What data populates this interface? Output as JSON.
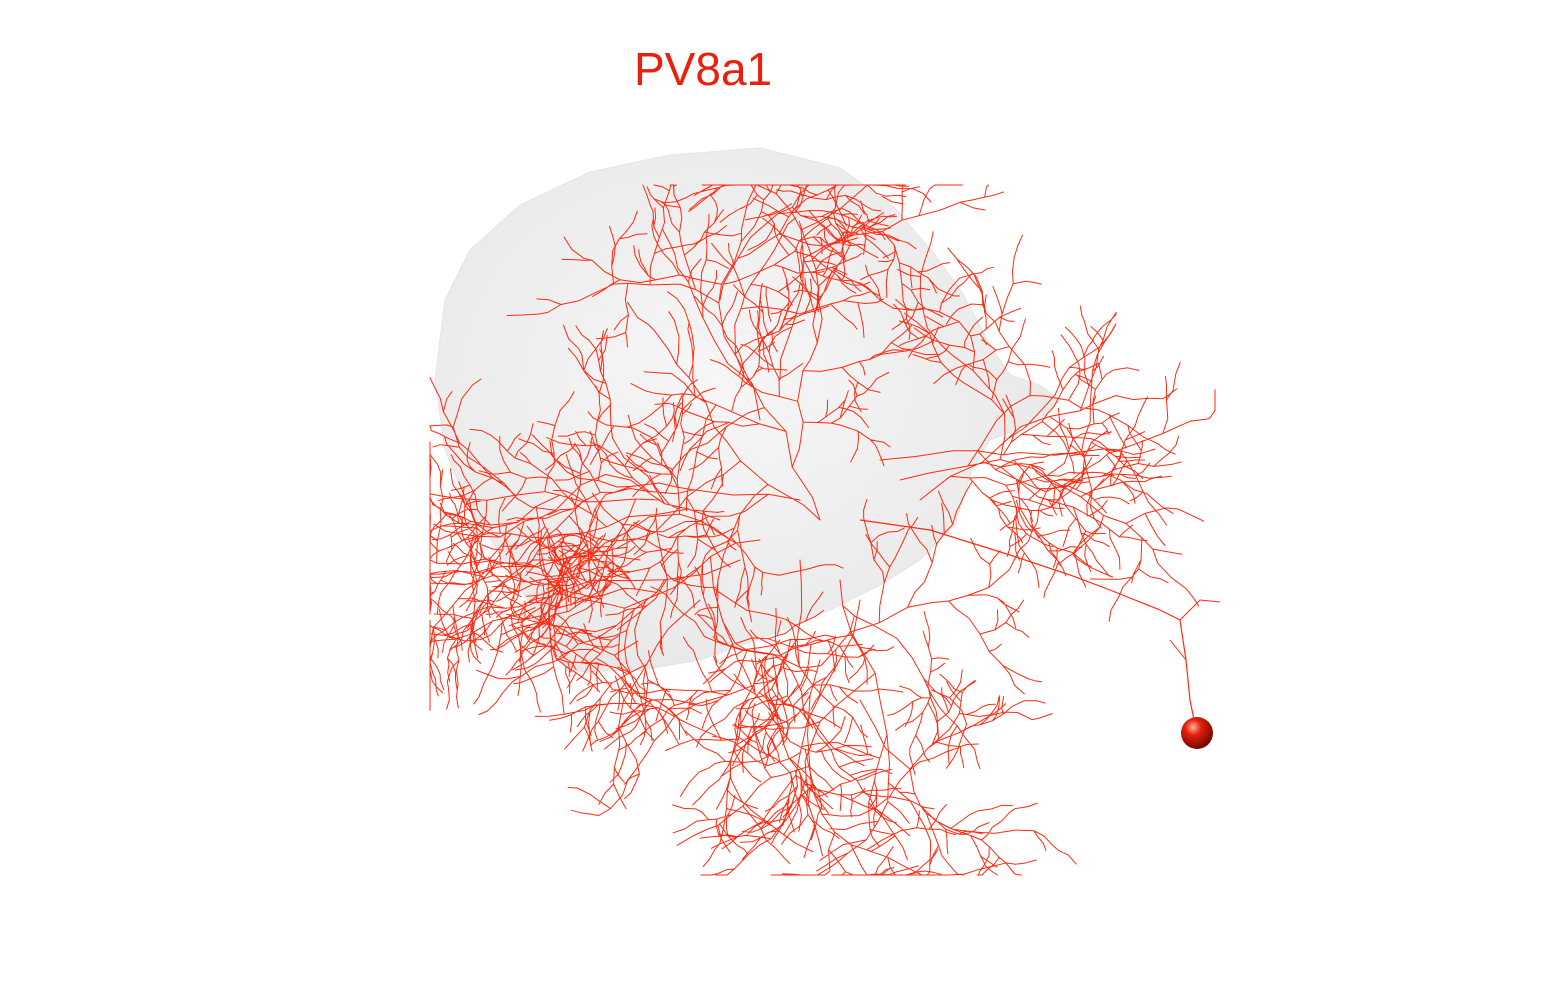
{
  "title": "PV8a1",
  "colors": {
    "neuron": "#ff2a12",
    "title": "#e8200c",
    "neuropil": "#d9d9d9",
    "background": "#ffffff"
  }
}
